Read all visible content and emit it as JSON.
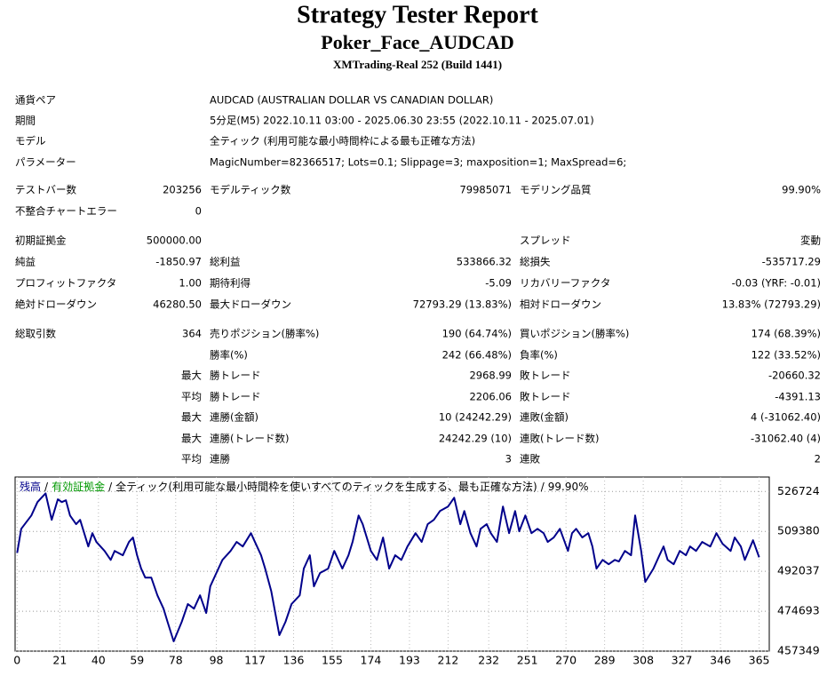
{
  "header": {
    "title": "Strategy Tester Report",
    "subtitle": "Poker_Face_AUDCAD",
    "build": "XMTrading-Real 252 (Build 1441)"
  },
  "info": [
    {
      "label": "通貨ペア",
      "value": "AUDCAD (AUSTRALIAN DOLLAR VS CANADIAN DOLLAR)"
    },
    {
      "label": "期間",
      "value": "5分足(M5) 2022.10.11 03:00 - 2025.06.30 23:55 (2022.10.11 - 2025.07.01)"
    },
    {
      "label": "モデル",
      "value": "全ティック (利用可能な最小時間枠による最も正確な方法)"
    },
    {
      "label": "パラメーター",
      "value": "MagicNumber=82366517; Lots=0.1; Slippage=3; maxposition=1; MaxSpread=6;"
    }
  ],
  "stats": {
    "rows": [
      [
        "テストバー数",
        "203256",
        "モデルティック数",
        "79985071",
        "モデリング品質",
        "99.90%"
      ],
      [
        "不整合チャートエラー",
        "0",
        null,
        null,
        null,
        null
      ],
      [
        "初期証拠金",
        "500000.00",
        null,
        null,
        "スプレッド",
        "変動"
      ],
      [
        "純益",
        "-1850.97",
        "総利益",
        "533866.32",
        "総損失",
        "-535717.29"
      ],
      [
        "プロフィットファクタ",
        "1.00",
        "期待利得",
        "-5.09",
        "リカバリーファクタ",
        "-0.03 (YRF: -0.01)"
      ],
      [
        "絶対ドローダウン",
        "46280.50",
        "最大ドローダウン",
        "72793.29 (13.83%)",
        "相対ドローダウン",
        "13.83% (72793.29)"
      ],
      [
        "総取引数",
        "364",
        "売りポジション(勝率%)",
        "190 (64.74%)",
        "買いポジション(勝率%)",
        "174 (68.39%)"
      ],
      [
        null,
        null,
        "勝率(%)",
        "242 (66.48%)",
        "負率(%)",
        "122 (33.52%)"
      ],
      [
        null,
        "最大",
        "勝トレード",
        "2968.99",
        "敗トレード",
        "-20660.32"
      ],
      [
        null,
        "平均",
        "勝トレード",
        "2206.06",
        "敗トレード",
        "-4391.13"
      ],
      [
        null,
        "最大",
        "連勝(金額)",
        "10 (24242.29)",
        "連敗(金額)",
        "4 (-31062.40)"
      ],
      [
        null,
        "最大",
        "連勝(トレード数)",
        "24242.29 (10)",
        "連敗(トレード数)",
        "-31062.40 (4)"
      ],
      [
        null,
        "平均",
        "連勝",
        "3",
        "連敗",
        "2"
      ]
    ]
  },
  "chart_data": {
    "type": "line",
    "separator": "/",
    "equity_label": "有効証拠金",
    "equity_color": "#009900",
    "model_label": "全ティック(利用可能な最小時間枠を使いすべてのティックを生成する、最も正確な方法)",
    "quality_label": "99.90%",
    "x": [
      0,
      2,
      7,
      10,
      12,
      14,
      17,
      20,
      22,
      24,
      26,
      29,
      31,
      33,
      35,
      37,
      39,
      43,
      46,
      48,
      52,
      55,
      57,
      59,
      61,
      63,
      66,
      69,
      72,
      74,
      77,
      81,
      84,
      87,
      90,
      93,
      95,
      98,
      101,
      105,
      108,
      111,
      115,
      117,
      120,
      122,
      125,
      127,
      129,
      132,
      135,
      139,
      141,
      144,
      146,
      149,
      153,
      156,
      160,
      163,
      165,
      168,
      170,
      174,
      177,
      180,
      183,
      186,
      189,
      192,
      196,
      199,
      202,
      205,
      208,
      212,
      215,
      218,
      220,
      223,
      226,
      228,
      231,
      233,
      236,
      239,
      242,
      245,
      247,
      250,
      253,
      256,
      259,
      261,
      264,
      267,
      271,
      273,
      275,
      278,
      281,
      283,
      285,
      288,
      291,
      294,
      296,
      299,
      302,
      304,
      307,
      309,
      313,
      316,
      318,
      320,
      323,
      326,
      329,
      331,
      334,
      337,
      341,
      344,
      347,
      351,
      353,
      356,
      358,
      362,
      365
    ],
    "series": [
      {
        "name": "残高",
        "color": "#00008b",
        "values": [
          500000,
          510500,
          516300,
          522100,
          524000,
          525900,
          514400,
          523300,
          522100,
          522900,
          516300,
          512500,
          514400,
          508600,
          502800,
          508600,
          504800,
          500900,
          497000,
          500900,
          499000,
          504800,
          506700,
          499000,
          493200,
          489300,
          489300,
          481600,
          475800,
          470100,
          461600,
          470100,
          477800,
          475800,
          481600,
          473900,
          485500,
          491300,
          497000,
          500900,
          504800,
          502800,
          508600,
          504800,
          499000,
          493200,
          483500,
          473900,
          464300,
          470100,
          477800,
          481600,
          493200,
          499000,
          485500,
          491300,
          493200,
          500900,
          493200,
          499000,
          504800,
          516300,
          512500,
          500900,
          497000,
          506700,
          493200,
          499000,
          497000,
          502800,
          508600,
          504800,
          512500,
          514400,
          518200,
          520200,
          524000,
          512500,
          518200,
          508600,
          502800,
          510500,
          512500,
          508600,
          504800,
          520200,
          508600,
          518200,
          509400,
          516300,
          508600,
          510500,
          508600,
          504800,
          506700,
          510500,
          500900,
          508600,
          510500,
          506700,
          508600,
          502800,
          493200,
          497000,
          495100,
          497000,
          496300,
          500900,
          499000,
          516300,
          500900,
          487400,
          493200,
          499000,
          502800,
          497000,
          495100,
          500900,
          499000,
          502800,
          500900,
          504800,
          502800,
          508600,
          504000,
          500900,
          506700,
          502800,
          497000,
          505500,
          498100
        ]
      }
    ],
    "xlim": [
      -1,
      370
    ],
    "ylim": [
      457349,
      533000
    ],
    "xticks": [
      0,
      21,
      40,
      59,
      78,
      98,
      117,
      136,
      155,
      174,
      193,
      212,
      232,
      251,
      270,
      289,
      308,
      327,
      346,
      365
    ],
    "yticks": [
      457349,
      474693,
      492037,
      509380,
      526724
    ],
    "grid": true
  }
}
